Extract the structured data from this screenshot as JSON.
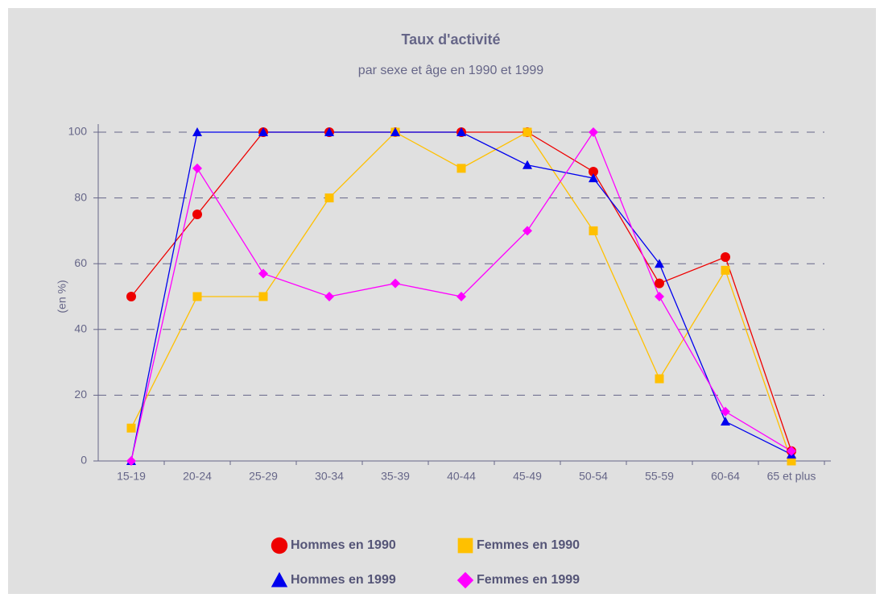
{
  "chart_data": {
    "type": "line",
    "title": "Taux d'activité",
    "subtitle": "par sexe et âge en 1990 et 1999",
    "y_label": "(en %)",
    "categories": [
      "15-19",
      "20-24",
      "25-29",
      "30-34",
      "35-39",
      "40-44",
      "45-49",
      "50-54",
      "55-59",
      "60-64",
      "65 et plus"
    ],
    "series": [
      {
        "name": "Hommes en 1990",
        "color": "#ee0000",
        "marker": "circle",
        "values": [
          50,
          75,
          100,
          100,
          100,
          100,
          100,
          88,
          54,
          62,
          3
        ]
      },
      {
        "name": "Femmes en 1990",
        "color": "#ffc000",
        "marker": "square",
        "values": [
          10,
          50,
          50,
          80,
          100,
          89,
          100,
          70,
          25,
          58,
          0
        ]
      },
      {
        "name": "Hommes en 1999",
        "color": "#0000ee",
        "marker": "triangle",
        "values": [
          0,
          100,
          100,
          100,
          100,
          100,
          90,
          86,
          60,
          12,
          2
        ]
      },
      {
        "name": "Femmes en 1999",
        "color": "#ff00ff",
        "marker": "diamond",
        "values": [
          0,
          89,
          57,
          50,
          54,
          50,
          70,
          100,
          50,
          15,
          3
        ]
      }
    ],
    "ylim": [
      0,
      100
    ],
    "yticks": [
      0,
      20,
      40,
      60,
      80,
      100
    ],
    "grid": true
  }
}
